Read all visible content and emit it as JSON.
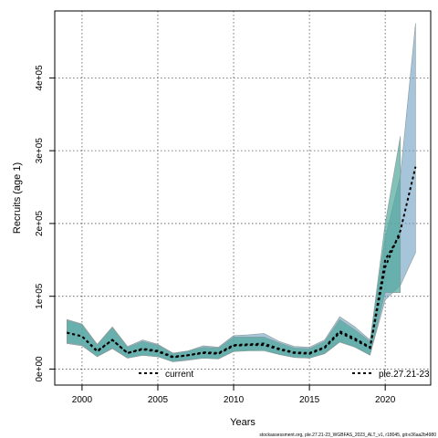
{
  "chart_data": {
    "type": "area",
    "xlabel": "Years",
    "ylabel": "Recruits (age 1)",
    "xlim": [
      1998.2,
      2023.0
    ],
    "ylim": [
      -22000,
      492000
    ],
    "x_ticks": [
      2000,
      2005,
      2010,
      2015,
      2020
    ],
    "y_ticks": [
      0,
      100000,
      200000,
      300000,
      400000
    ],
    "y_tick_labels": [
      "0e+00",
      "1e+05",
      "2e+05",
      "3e+05",
      "4e+05"
    ],
    "grid": true,
    "legend_placement": "bottom",
    "footer": "stockassessment.org, ple.27.21-23_WGBFAS_2023_ALT_v1, r18045, git:e36aa2b4980",
    "series": [
      {
        "name": "current",
        "color": "#000000",
        "band_color": "#6b9fc2",
        "x": [
          1999,
          2000,
          2001,
          2002,
          2003,
          2004,
          2005,
          2006,
          2007,
          2008,
          2009,
          2010,
          2011,
          2012,
          2013,
          2014,
          2015,
          2016,
          2017,
          2018,
          2019,
          2020,
          2021,
          2022
        ],
        "y": [
          50000,
          45000,
          25000,
          40000,
          22000,
          28000,
          25000,
          17000,
          19000,
          23000,
          22000,
          33000,
          34000,
          35000,
          28000,
          23000,
          22000,
          30000,
          52000,
          42000,
          30000,
          140000,
          190000,
          278000
        ],
        "lower": [
          35000,
          32000,
          17000,
          28000,
          15000,
          19000,
          17000,
          10000,
          12000,
          15000,
          14000,
          25000,
          26000,
          27000,
          20000,
          16000,
          15000,
          22000,
          38000,
          31000,
          20000,
          95000,
          115000,
          160000
        ],
        "upper": [
          68000,
          62000,
          34000,
          58000,
          31000,
          40000,
          34000,
          22000,
          25000,
          32000,
          30000,
          46000,
          47000,
          49000,
          38000,
          31000,
          30000,
          40000,
          72000,
          58000,
          40000,
          180000,
          265000,
          475000
        ]
      },
      {
        "name": "ple.27.21-23",
        "color": "#000000",
        "band_color": "#4ea79b",
        "x": [
          1999,
          2000,
          2001,
          2002,
          2003,
          2004,
          2005,
          2006,
          2007,
          2008,
          2009,
          2010,
          2011,
          2012,
          2013,
          2014,
          2015,
          2016,
          2017,
          2018,
          2019,
          2020,
          2021
        ],
        "y": [
          50000,
          45000,
          24000,
          40000,
          22000,
          27000,
          24000,
          16000,
          19000,
          22000,
          21000,
          32000,
          33000,
          33000,
          27000,
          22000,
          21000,
          29000,
          50000,
          40000,
          29000,
          150000,
          185000
        ],
        "lower": [
          36000,
          33000,
          17000,
          29000,
          15000,
          19000,
          17000,
          10000,
          13000,
          15000,
          14000,
          24000,
          25000,
          25000,
          20000,
          16000,
          15000,
          21000,
          37000,
          30000,
          19000,
          105000,
          105000
        ],
        "upper": [
          67000,
          61000,
          33000,
          57000,
          30000,
          38000,
          33000,
          21000,
          25000,
          30000,
          29000,
          44000,
          44000,
          44000,
          36000,
          29000,
          28000,
          38000,
          68000,
          54000,
          38000,
          200000,
          320000
        ]
      }
    ]
  }
}
